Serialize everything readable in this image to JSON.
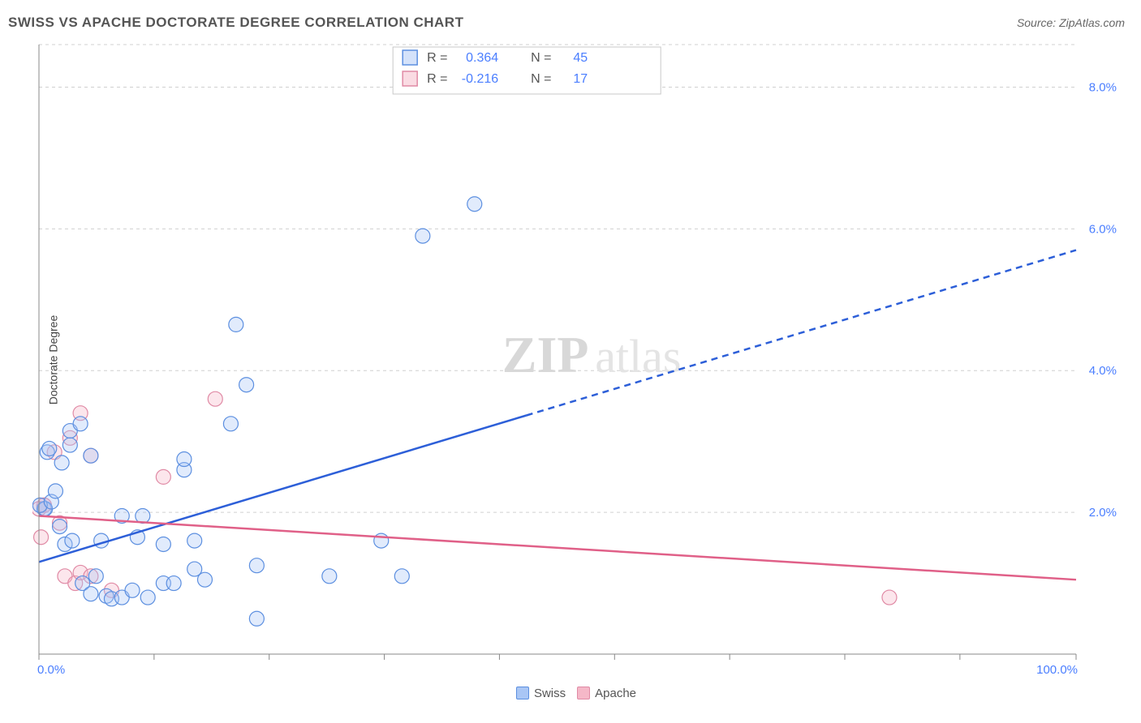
{
  "title": "SWISS VS APACHE DOCTORATE DEGREE CORRELATION CHART",
  "source_label": "Source: ZipAtlas.com",
  "y_axis_label": "Doctorate Degree",
  "watermark": {
    "part1": "ZIP",
    "part2": "atlas"
  },
  "chart": {
    "type": "scatter",
    "xlim": [
      0,
      100
    ],
    "ylim": [
      0,
      8.6
    ],
    "background_color": "#ffffff",
    "grid_color": "#d0d0d0",
    "grid_dash": "4 4",
    "axis_color": "#888888",
    "y_ticks": [
      2.0,
      4.0,
      6.0,
      8.0
    ],
    "y_tick_labels": [
      "2.0%",
      "4.0%",
      "6.0%",
      "8.0%"
    ],
    "x_tick_positions": [
      0,
      11.1,
      22.2,
      33.3,
      44.4,
      55.5,
      66.6,
      77.7,
      88.8,
      100
    ],
    "x_floor_left": "0.0%",
    "x_floor_right": "100.0%",
    "tick_label_color": "#4a7eff",
    "tick_label_fontsize": 15,
    "marker_radius": 9,
    "marker_stroke_width": 1.2,
    "marker_fill_opacity": 0.35,
    "series": [
      {
        "name": "Swiss",
        "color_fill": "#a9c6f5",
        "color_stroke": "#5c8fe0",
        "line_color": "#2d5fd8",
        "R": "0.364",
        "N": "45",
        "points": [
          [
            0.5,
            2.05
          ],
          [
            0.6,
            2.05
          ],
          [
            0.1,
            2.1
          ],
          [
            0.8,
            2.85
          ],
          [
            1.0,
            2.9
          ],
          [
            1.2,
            2.15
          ],
          [
            1.6,
            2.3
          ],
          [
            2.0,
            1.8
          ],
          [
            2.2,
            2.7
          ],
          [
            2.5,
            1.55
          ],
          [
            3.0,
            3.15
          ],
          [
            3.2,
            1.6
          ],
          [
            3.0,
            2.95
          ],
          [
            4.0,
            3.25
          ],
          [
            4.2,
            1.0
          ],
          [
            5.0,
            2.8
          ],
          [
            5.0,
            0.85
          ],
          [
            5.5,
            1.1
          ],
          [
            6.0,
            1.6
          ],
          [
            6.5,
            0.82
          ],
          [
            7.0,
            0.78
          ],
          [
            8.0,
            0.8
          ],
          [
            8.0,
            1.95
          ],
          [
            9.0,
            0.9
          ],
          [
            9.5,
            1.65
          ],
          [
            10.0,
            1.95
          ],
          [
            10.5,
            0.8
          ],
          [
            12.0,
            1.0
          ],
          [
            12.0,
            1.55
          ],
          [
            13.0,
            1.0
          ],
          [
            14.0,
            2.6
          ],
          [
            14.0,
            2.75
          ],
          [
            15.0,
            1.6
          ],
          [
            15.0,
            1.2
          ],
          [
            16.0,
            1.05
          ],
          [
            18.5,
            3.25
          ],
          [
            19.0,
            4.65
          ],
          [
            20.0,
            3.8
          ],
          [
            21.0,
            1.25
          ],
          [
            21.0,
            0.5
          ],
          [
            28.0,
            1.1
          ],
          [
            33.0,
            1.6
          ],
          [
            35.0,
            1.1
          ],
          [
            37.0,
            5.9
          ],
          [
            42.0,
            6.35
          ]
        ],
        "trend_line": {
          "x1": 0,
          "y1": 1.3,
          "x2": 100,
          "y2": 5.7,
          "solid_until_pct": 47,
          "width": 2.5
        }
      },
      {
        "name": "Apache",
        "color_fill": "#f5b8c8",
        "color_stroke": "#e08aa5",
        "line_color": "#e06088",
        "R": "-0.216",
        "N": "17",
        "points": [
          [
            0.2,
            1.65
          ],
          [
            0.5,
            2.1
          ],
          [
            0.5,
            2.1
          ],
          [
            1.5,
            2.85
          ],
          [
            2.0,
            1.85
          ],
          [
            2.5,
            1.1
          ],
          [
            3.0,
            3.05
          ],
          [
            3.5,
            1.0
          ],
          [
            4.0,
            1.15
          ],
          [
            4.0,
            3.4
          ],
          [
            5.0,
            2.8
          ],
          [
            5.0,
            1.1
          ],
          [
            7.0,
            0.9
          ],
          [
            12.0,
            2.5
          ],
          [
            17.0,
            3.6
          ],
          [
            82.0,
            0.8
          ],
          [
            0.0,
            2.05
          ]
        ],
        "trend_line": {
          "x1": 0,
          "y1": 1.95,
          "x2": 100,
          "y2": 1.05,
          "solid_until_pct": 100,
          "width": 2.5
        }
      }
    ],
    "legend_top": {
      "box_stroke": "#c8c8c8",
      "box_fill": "#ffffff",
      "label_color": "#555555",
      "value_color": "#4a7eff",
      "fontsize": 16
    },
    "legend_bottom": [
      {
        "label": "Swiss",
        "fill": "#a9c6f5",
        "stroke": "#5c8fe0"
      },
      {
        "label": "Apache",
        "fill": "#f5b8c8",
        "stroke": "#e08aa5"
      }
    ]
  }
}
